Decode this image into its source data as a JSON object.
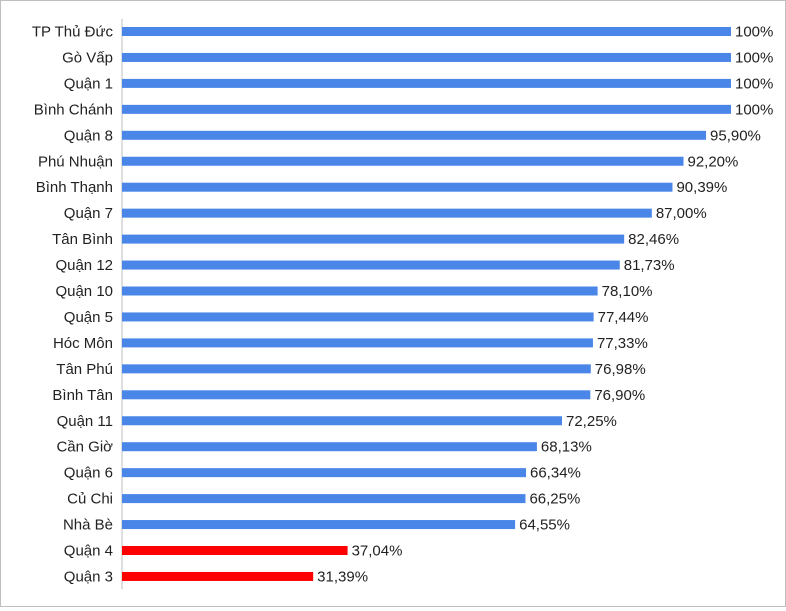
{
  "chart_data": {
    "type": "bar",
    "orientation": "horizontal",
    "categories": [
      "TP Thủ Đức",
      "Gò Vấp",
      "Quận 1",
      "Bình Chánh",
      "Quận 8",
      "Phú Nhuận",
      "Bình Thạnh",
      "Quận 7",
      "Tân Bình",
      "Quận 12",
      "Quận 10",
      "Quận 5",
      "Hóc Môn",
      "Tân Phú",
      "Bình Tân",
      "Quận 11",
      "Cần Giờ",
      "Quận 6",
      "Củ Chi",
      "Nhà Bè",
      "Quận 4",
      "Quận 3"
    ],
    "values": [
      100,
      100,
      100,
      100,
      95.9,
      92.2,
      90.39,
      87.0,
      82.46,
      81.73,
      78.1,
      77.44,
      77.33,
      76.98,
      76.9,
      72.25,
      68.13,
      66.34,
      66.25,
      64.55,
      37.04,
      31.39
    ],
    "value_labels": [
      "100%",
      "100%",
      "100%",
      "100%",
      "95,90%",
      "92,20%",
      "90,39%",
      "87,00%",
      "82,46%",
      "81,73%",
      "78,10%",
      "77,44%",
      "77,33%",
      "76,98%",
      "76,90%",
      "72,25%",
      "68,13%",
      "66,34%",
      "66,25%",
      "64,55%",
      "37,04%",
      "31,39%"
    ],
    "bar_colors": [
      "#4a86e8",
      "#4a86e8",
      "#4a86e8",
      "#4a86e8",
      "#4a86e8",
      "#4a86e8",
      "#4a86e8",
      "#4a86e8",
      "#4a86e8",
      "#4a86e8",
      "#4a86e8",
      "#4a86e8",
      "#4a86e8",
      "#4a86e8",
      "#4a86e8",
      "#4a86e8",
      "#4a86e8",
      "#4a86e8",
      "#4a86e8",
      "#4a86e8",
      "#ff0000",
      "#ff0000"
    ],
    "title": "",
    "xlabel": "",
    "ylabel": "",
    "grid": false,
    "legend": "none",
    "colors": {
      "primary": "#4a86e8",
      "highlight": "#ff0000",
      "axis": "#bfbfbf"
    }
  }
}
